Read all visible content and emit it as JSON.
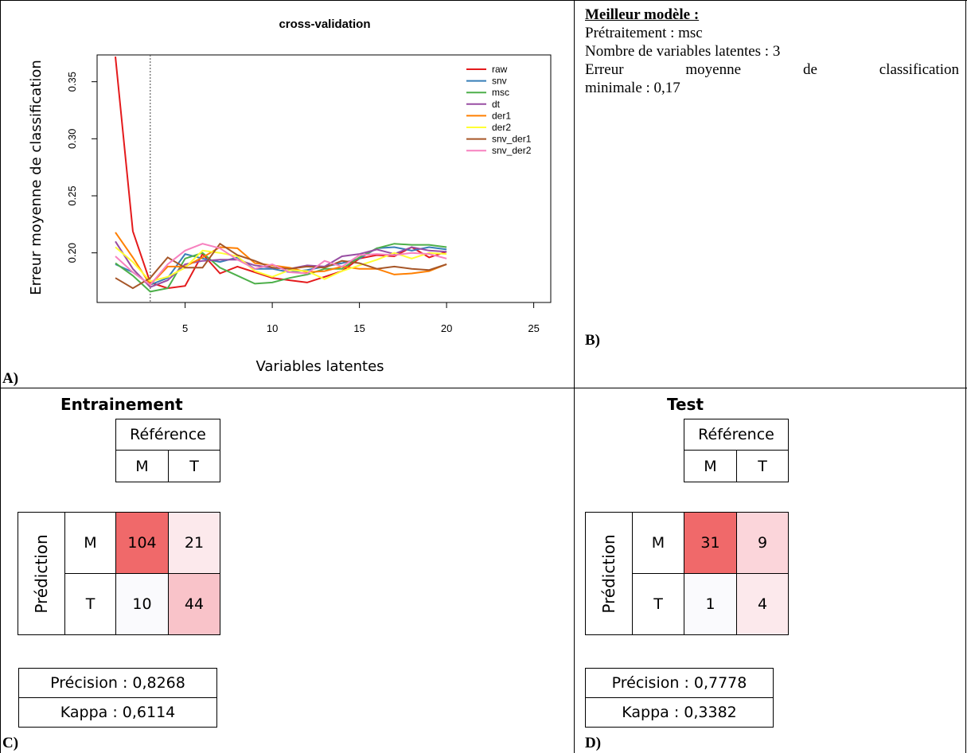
{
  "panel_a": {
    "letter": "A)",
    "chart_data": {
      "type": "line",
      "title": "cross-validation",
      "xlabel": "Variables latentes",
      "ylabel": "Erreur moyenne de classification",
      "xlim": [
        0,
        26
      ],
      "ylim": [
        0.16,
        0.37
      ],
      "x_ticks": [
        5,
        10,
        15,
        20,
        25
      ],
      "y_ticks": [
        0.2,
        0.25,
        0.3,
        0.35
      ],
      "y_tick_labels": [
        "0.20",
        "0.25",
        "0.30",
        "0.35"
      ],
      "vline_x": 3,
      "x": [
        1,
        2,
        3,
        4,
        5,
        6,
        7,
        8,
        9,
        10,
        11,
        12,
        13,
        14,
        15,
        16,
        17,
        18,
        19,
        20
      ],
      "series": [
        {
          "name": "raw",
          "color": "#e41a1c",
          "values": [
            0.372,
            0.219,
            0.174,
            0.169,
            0.171,
            0.199,
            0.182,
            0.188,
            0.183,
            0.178,
            0.176,
            0.174,
            0.179,
            0.184,
            0.195,
            0.198,
            0.197,
            0.205,
            0.196,
            0.201
          ]
        },
        {
          "name": "snv",
          "color": "#377eb8",
          "values": [
            0.19,
            0.183,
            0.172,
            0.178,
            0.199,
            0.195,
            0.192,
            0.196,
            0.186,
            0.186,
            0.183,
            0.185,
            0.188,
            0.191,
            0.195,
            0.204,
            0.205,
            0.202,
            0.205,
            0.203
          ]
        },
        {
          "name": "msc",
          "color": "#4daf4a",
          "values": [
            0.191,
            0.18,
            0.166,
            0.169,
            0.195,
            0.2,
            0.187,
            0.18,
            0.173,
            0.174,
            0.178,
            0.181,
            0.186,
            0.186,
            0.196,
            0.204,
            0.208,
            0.207,
            0.207,
            0.205
          ]
        },
        {
          "name": "dt",
          "color": "#984ea3",
          "values": [
            0.21,
            0.186,
            0.17,
            0.176,
            0.19,
            0.193,
            0.194,
            0.194,
            0.189,
            0.187,
            0.186,
            0.189,
            0.188,
            0.197,
            0.199,
            0.203,
            0.199,
            0.205,
            0.202,
            0.201
          ]
        },
        {
          "name": "der1",
          "color": "#ff7f00",
          "values": [
            0.218,
            0.196,
            0.172,
            0.188,
            0.188,
            0.196,
            0.205,
            0.204,
            0.191,
            0.189,
            0.187,
            0.183,
            0.184,
            0.188,
            0.186,
            0.186,
            0.181,
            0.182,
            0.184,
            0.19
          ]
        },
        {
          "name": "der2",
          "color": "#ffff33",
          "values": [
            0.205,
            0.192,
            0.175,
            0.179,
            0.187,
            0.202,
            0.2,
            0.197,
            0.184,
            0.179,
            0.185,
            0.184,
            0.177,
            0.184,
            0.189,
            0.194,
            0.2,
            0.195,
            0.2,
            0.199
          ]
        },
        {
          "name": "snv_der1",
          "color": "#a65628",
          "values": [
            0.178,
            0.169,
            0.178,
            0.196,
            0.187,
            0.187,
            0.208,
            0.198,
            0.193,
            0.187,
            0.186,
            0.188,
            0.187,
            0.193,
            0.191,
            0.186,
            0.188,
            0.186,
            0.185,
            0.19
          ]
        },
        {
          "name": "snv_der2",
          "color": "#f781bf",
          "values": [
            0.197,
            0.183,
            0.172,
            0.19,
            0.202,
            0.208,
            0.204,
            0.194,
            0.186,
            0.19,
            0.183,
            0.182,
            0.193,
            0.188,
            0.198,
            0.199,
            0.198,
            0.2,
            0.199,
            0.195
          ]
        }
      ]
    }
  },
  "panel_b": {
    "letter": "B)",
    "title": "Meilleur modèle :",
    "line1": "Prétraitement : msc",
    "line2": "Nombre de variables latentes : 3",
    "line3_words": [
      "Erreur",
      "moyenne",
      "de",
      "classification"
    ],
    "line4": "minimale : 0,17"
  },
  "panel_c": {
    "letter": "C)",
    "title": "Entrainement",
    "reference": "Référence",
    "prediction": "Prédiction",
    "col_m": "M",
    "col_t": "T",
    "row_m": "M",
    "row_t": "T",
    "mm": "104",
    "mt": "21",
    "tm": "10",
    "tt": "44",
    "colors": {
      "mm": "#f0696a",
      "mt": "#fce9ec",
      "tm": "#fafafd",
      "tt": "#f9c3c9"
    },
    "precision": "Précision : 0,8268",
    "kappa": "Kappa : 0,6114"
  },
  "panel_d": {
    "letter": "D)",
    "title": "Test",
    "reference": "Référence",
    "prediction": "Prédiction",
    "col_m": "M",
    "col_t": "T",
    "row_m": "M",
    "row_t": "T",
    "mm": "31",
    "mt": "9",
    "tm": "1",
    "tt": "4",
    "colors": {
      "mm": "#f0696a",
      "mt": "#fbd5da",
      "tm": "#fafafd",
      "tt": "#fce9ec"
    },
    "precision": "Précision : 0,7778",
    "kappa": "Kappa : 0,3382"
  }
}
